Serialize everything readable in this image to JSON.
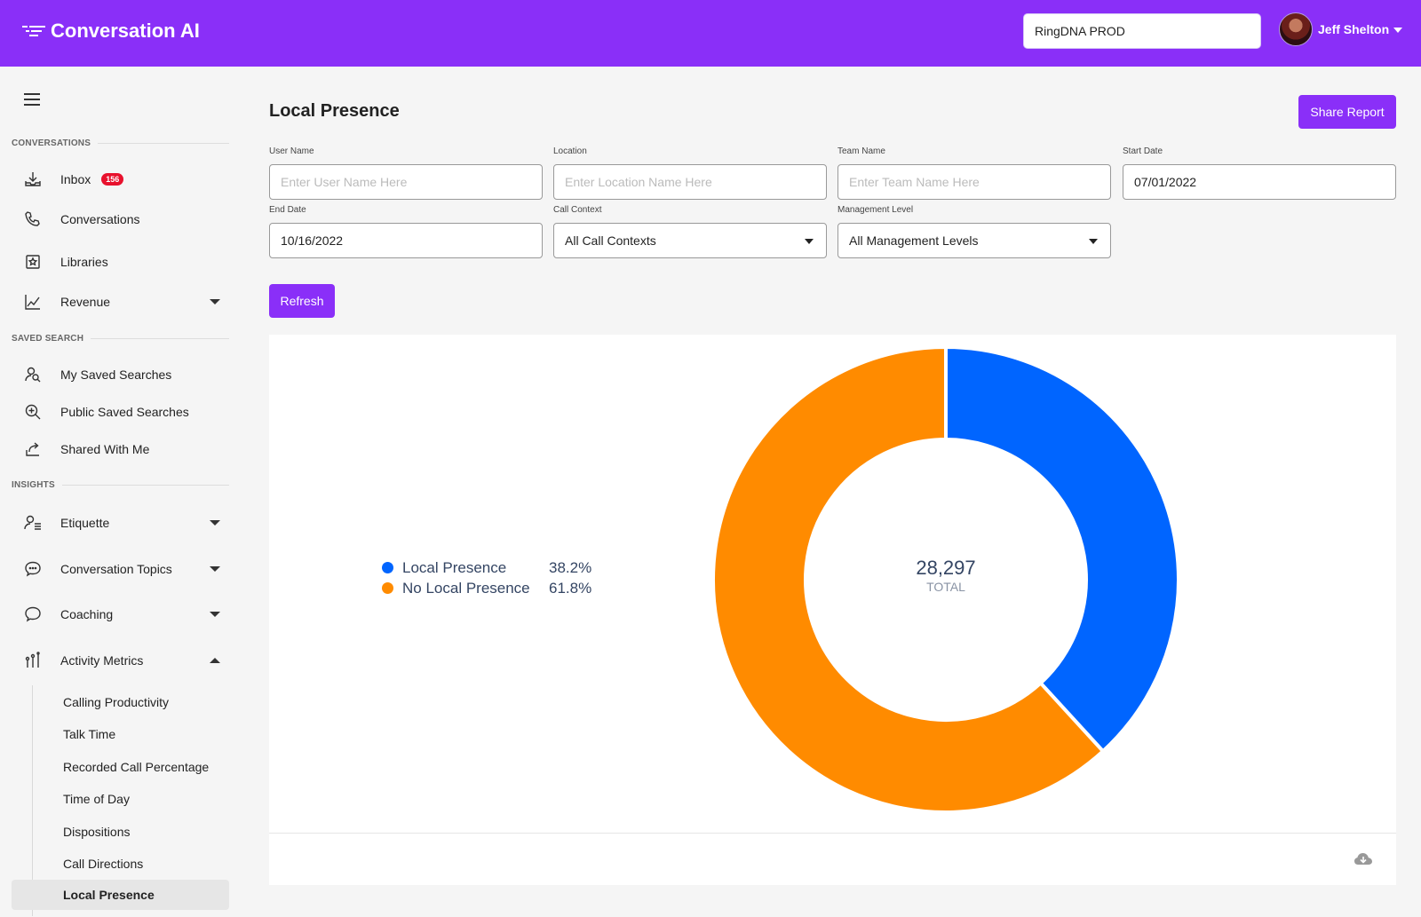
{
  "header": {
    "brand": "Conversation AI",
    "org_selector": "RingDNA PROD",
    "user_name": "Jeff Shelton"
  },
  "sidebar": {
    "sections": {
      "conversations": "CONVERSATIONS",
      "saved_search": "SAVED SEARCH",
      "insights": "INSIGHTS"
    },
    "items": {
      "inbox": "Inbox",
      "inbox_badge": "156",
      "conversations": "Conversations",
      "libraries": "Libraries",
      "revenue": "Revenue",
      "my_saved_searches": "My Saved Searches",
      "public_saved_searches": "Public Saved Searches",
      "shared_with_me": "Shared With Me",
      "etiquette": "Etiquette",
      "conversation_topics": "Conversation Topics",
      "coaching": "Coaching",
      "activity_metrics": "Activity Metrics"
    },
    "activity_metrics_sub": [
      "Calling Productivity",
      "Talk Time",
      "Recorded Call Percentage",
      "Time of Day",
      "Dispositions",
      "Call Directions",
      "Local Presence"
    ]
  },
  "page": {
    "title": "Local Presence",
    "share_label": "Share Report",
    "refresh_label": "Refresh"
  },
  "filters": {
    "user_name": {
      "label": "User Name",
      "placeholder": "Enter User Name Here",
      "value": ""
    },
    "location": {
      "label": "Location",
      "placeholder": "Enter Location Name Here",
      "value": ""
    },
    "team_name": {
      "label": "Team Name",
      "placeholder": "Enter Team Name Here",
      "value": ""
    },
    "start_date": {
      "label": "Start Date",
      "value": "07/01/2022"
    },
    "end_date": {
      "label": "End Date",
      "value": "10/16/2022"
    },
    "call_context": {
      "label": "Call Context",
      "value": "All Call Contexts"
    },
    "management_level": {
      "label": "Management Level",
      "value": "All Management Levels"
    }
  },
  "chart_data": {
    "type": "pie",
    "donut": true,
    "categories": [
      "Local Presence",
      "No Local Presence"
    ],
    "values": [
      38.2,
      61.8
    ],
    "value_labels": [
      "38.2%",
      "61.8%"
    ],
    "colors": [
      "#0065ff",
      "#ff8b00"
    ],
    "center_value": "28,297",
    "center_label": "TOTAL",
    "legend": "left"
  },
  "icons": {
    "download": "cloud-download-icon"
  }
}
